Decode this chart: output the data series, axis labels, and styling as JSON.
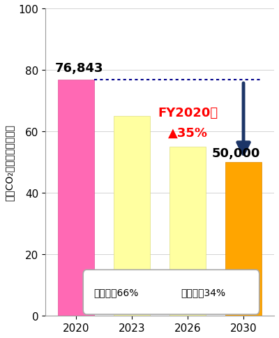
{
  "categories": [
    "2020",
    "2023",
    "2026",
    "2030"
  ],
  "values": [
    76.843,
    65.0,
    55.0,
    50.0
  ],
  "bar_colors": [
    "#FF69B4",
    "#FFFFA0",
    "#FFFFA0",
    "#FFA500"
  ],
  "ylim": [
    0,
    100
  ],
  "yticks": [
    0,
    20,
    40,
    60,
    80,
    100
  ],
  "ylabel": "国内CO₂排出量（千トン）",
  "title_value_2020": "76,843",
  "title_value_2030": "50,000",
  "annotation_line1": "FY2020比",
  "annotation_line2": "▲35%",
  "legend_text1": "直接排出66%",
  "legend_text2": "間接排出34%",
  "dotted_line_y": 76.843,
  "arrow_color": "#1C3567",
  "dotted_line_color": "#00008B",
  "bg_color": "#FFFFFF",
  "bar_width": 0.65
}
